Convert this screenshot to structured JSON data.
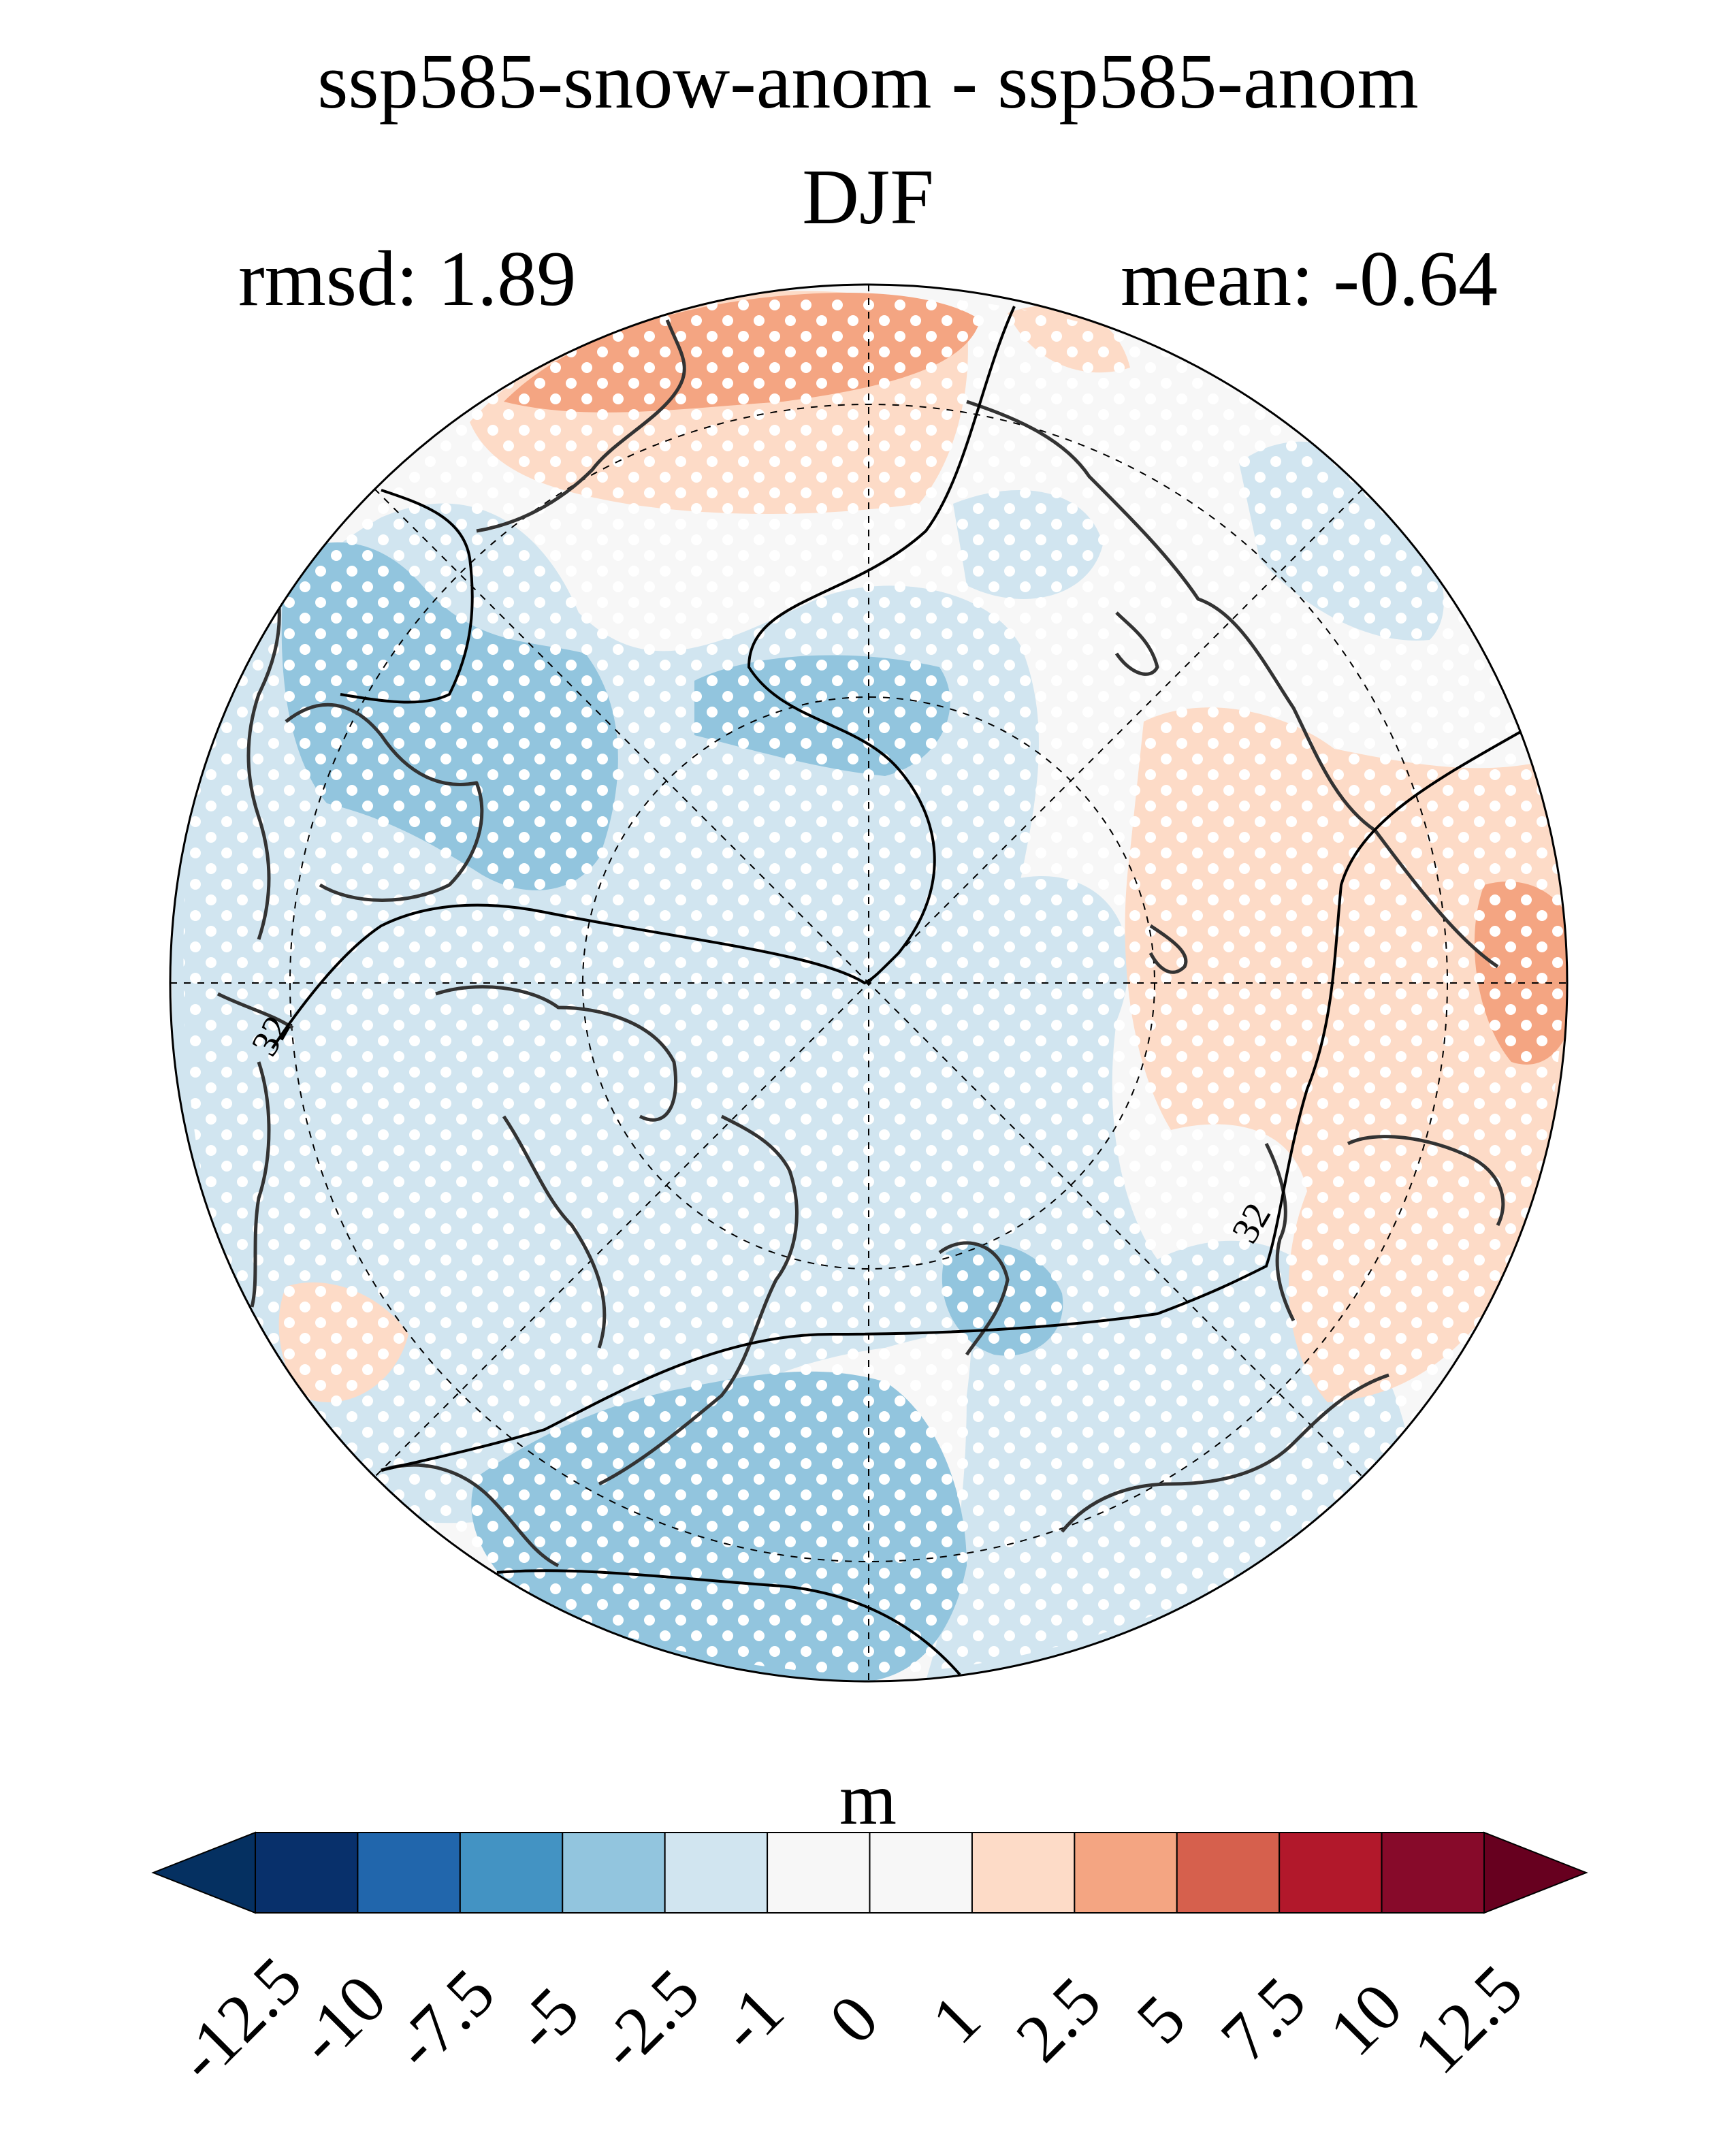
{
  "title": "ssp585-snow-anom - ssp585-anom",
  "subtitle": "DJF",
  "stats": {
    "rmsd_label": "rmsd: 1.89",
    "mean_label": "mean: -0.64"
  },
  "map": {
    "projection": "north-polar-stereographic",
    "contour_label": "32",
    "stippling": "white dots over most of the domain"
  },
  "colorbar": {
    "unit": "m",
    "extend": "both",
    "tick_labels": [
      "-12.5",
      "-10",
      "-7.5",
      "-5",
      "-2.5",
      "-1",
      "0",
      "1",
      "2.5",
      "5",
      "7.5",
      "10",
      "12.5"
    ],
    "colors": [
      "#053061",
      "#08306b",
      "#2166ac",
      "#4393c3",
      "#92c5de",
      "#d1e5f0",
      "#f7f7f7",
      "#f7f7f7",
      "#fddbc7",
      "#f4a582",
      "#d6604d",
      "#b2182b",
      "#870a2a",
      "#67001f"
    ]
  },
  "colors": {
    "blue_light": "#d1e5f0",
    "blue_mid": "#92c5de",
    "neutral": "#f7f7f7",
    "red_light": "#fddbc7",
    "red_mid": "#f4a582",
    "coast": "#333333"
  }
}
